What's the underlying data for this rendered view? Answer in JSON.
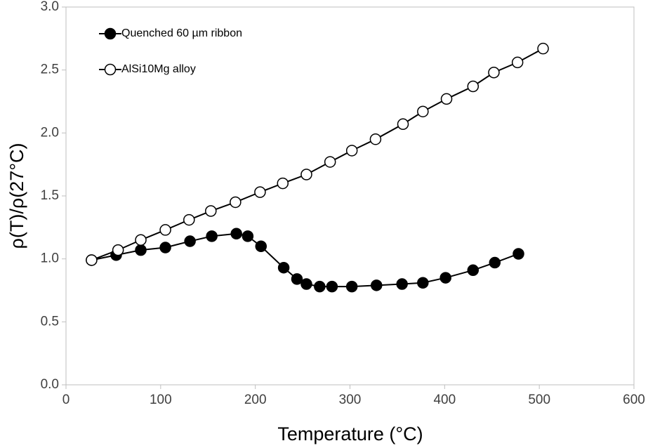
{
  "chart_data": {
    "type": "line",
    "x_label": "Temperature (°C)",
    "y_label": "ρ(T)/ρ(27°C)",
    "xlim": [
      0,
      600
    ],
    "xticks": [
      0,
      100,
      200,
      300,
      400,
      500,
      600
    ],
    "ylim": [
      0,
      3
    ],
    "yticks": [
      {
        "value": 0,
        "label": "0.0"
      },
      0.5,
      {
        "value": 1,
        "label": "1.0"
      },
      1.5,
      {
        "value": 2,
        "label": "2.0"
      },
      2.5,
      {
        "value": 3,
        "label": "3.0"
      }
    ],
    "grid": false,
    "legend": "upper left",
    "series": [
      {
        "name": "Quenched 60 µm ribbon",
        "color": "#000000",
        "marker": "filled",
        "x": [
          27,
          53,
          79,
          105,
          131,
          154,
          180,
          192,
          206,
          230,
          244,
          254,
          268,
          281,
          302,
          328,
          355,
          377,
          401,
          430,
          453,
          478
        ],
        "values": [
          0.99,
          1.03,
          1.07,
          1.09,
          1.14,
          1.18,
          1.2,
          1.18,
          1.1,
          0.93,
          0.84,
          0.8,
          0.78,
          0.78,
          0.78,
          0.79,
          0.8,
          0.81,
          0.85,
          0.91,
          0.97,
          1.04
        ]
      },
      {
        "name": "AlSi10Mg alloy",
        "color": "#000000",
        "marker": "open",
        "x": [
          27,
          55,
          79,
          105,
          130,
          153,
          179,
          205,
          229,
          254,
          279,
          302,
          327,
          356,
          377,
          402,
          430,
          452,
          477,
          504
        ],
        "values": [
          0.99,
          1.07,
          1.15,
          1.23,
          1.31,
          1.38,
          1.45,
          1.53,
          1.6,
          1.67,
          1.77,
          1.86,
          1.95,
          2.07,
          2.17,
          2.27,
          2.37,
          2.48,
          2.56,
          2.67
        ]
      }
    ]
  }
}
